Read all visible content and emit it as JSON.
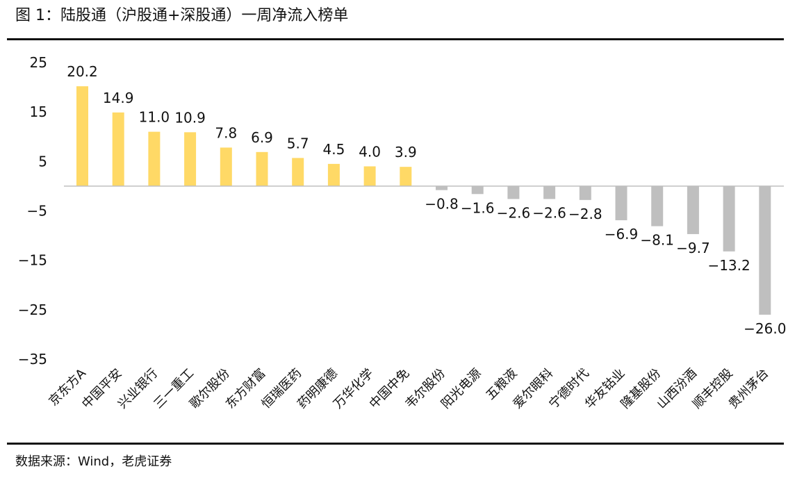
{
  "title": "图 1：陆股通（沪股通+深股通）一周净流入榜单",
  "source": "数据来源：Wind，老虎证券",
  "colors": {
    "positive": "#FFD966",
    "negative": "#BFBFBF",
    "axis": "#BFBFBF",
    "rule": "#111111"
  },
  "chart_data": {
    "type": "bar",
    "title": "",
    "xlabel": "",
    "ylabel": "",
    "ylim": [
      -35,
      25
    ],
    "yticks": [
      25,
      15,
      5,
      -5,
      -15,
      -25,
      -35
    ],
    "ytick_labels": [
      "25",
      "15",
      "5",
      "−5",
      "−15",
      "−25",
      "−35"
    ],
    "grid": false,
    "categories": [
      "京东方A",
      "中国平安",
      "兴业银行",
      "三一重工",
      "歌尔股份",
      "东方财富",
      "恒瑞医药",
      "药明康德",
      "万华化学",
      "中国中免",
      "韦尔股份",
      "阳光电源",
      "五粮液",
      "爱尔眼科",
      "宁德时代",
      "华友钴业",
      "隆基股份",
      "山西汾酒",
      "顺丰控股",
      "贵州茅台"
    ],
    "values": [
      20.2,
      14.9,
      11.0,
      10.9,
      7.8,
      6.9,
      5.7,
      4.5,
      4.0,
      3.9,
      -0.8,
      -1.6,
      -2.6,
      -2.6,
      -2.8,
      -6.9,
      -8.1,
      -9.7,
      -13.2,
      -26.0
    ],
    "value_labels": [
      "20.2",
      "14.9",
      "11.0",
      "10.9",
      "7.8",
      "6.9",
      "5.7",
      "4.5",
      "4.0",
      "3.9",
      "−0.8",
      "−1.6",
      "−2.6",
      "−2.6",
      "−2.8",
      "−6.9",
      "−8.1",
      "−9.7",
      "−13.2",
      "−26.0"
    ]
  }
}
